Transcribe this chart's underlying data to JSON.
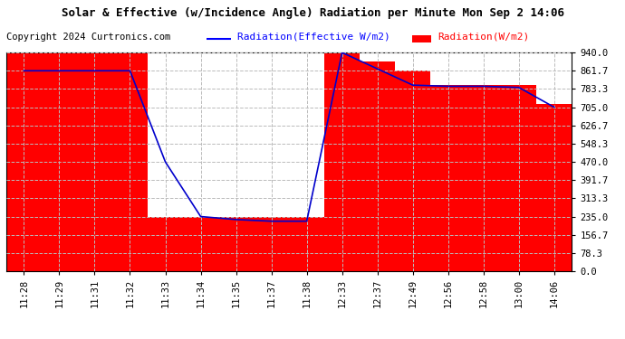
{
  "title": "Solar & Effective (w/Incidence Angle) Radiation per Minute Mon Sep 2 14:06",
  "copyright": "Copyright 2024 Curtronics.com",
  "legend_blue": "Radiation(Effective W/m2)",
  "legend_red": "Radiation(W/m2)",
  "x_labels": [
    "11:28",
    "11:29",
    "11:31",
    "11:32",
    "11:33",
    "11:34",
    "11:35",
    "11:37",
    "11:38",
    "12:33",
    "12:37",
    "12:49",
    "12:56",
    "12:58",
    "13:00",
    "14:06"
  ],
  "y_ticks": [
    0.0,
    78.3,
    156.7,
    235.0,
    313.3,
    391.7,
    470.0,
    548.3,
    626.7,
    705.0,
    783.3,
    861.7,
    940.0
  ],
  "ylim": [
    0,
    940
  ],
  "bar_values": [
    940,
    940,
    940,
    940,
    235,
    235,
    235,
    235,
    235,
    940,
    900,
    861.7,
    800,
    800,
    800,
    720
  ],
  "line_values": [
    861.7,
    861.7,
    861.7,
    861.7,
    470,
    235.0,
    222.0,
    215.0,
    215.0,
    940.0,
    870.0,
    800.0,
    795.0,
    795.0,
    790.0,
    705.0
  ],
  "bar_color": "#ff0000",
  "line_color": "#0000cc",
  "bg_color": "#ffffff",
  "plot_bg": "#ffffff",
  "grid_color": "#bbbbbb",
  "title_color": "#000000",
  "copyright_color": "#000000",
  "legend_blue_color": "#0000ff",
  "legend_red_color": "#ff0000",
  "title_fontsize": 9,
  "copyright_fontsize": 7.5,
  "legend_fontsize": 8,
  "tick_fontsize": 7.5
}
